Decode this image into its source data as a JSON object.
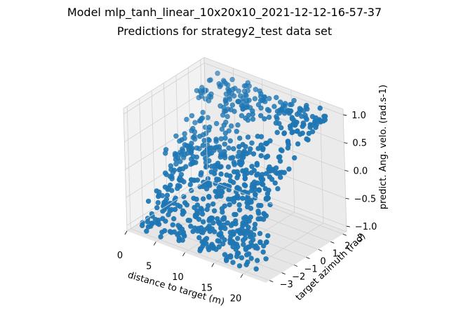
{
  "suptitle": "Model mlp_tanh_linear_10x20x10_2021-12-12-16-57-37",
  "chart_data": {
    "type": "scatter",
    "projection": "3d",
    "title": "Predictions for strategy2_test data set",
    "xlabel": "distance to target (m)",
    "ylabel": "target azimuth (rad)",
    "zlabel": "predict. Ang. velo. (rad.s-1)",
    "x_ticks": [
      0,
      5,
      10,
      15,
      20
    ],
    "y_ticks": [
      -3,
      -2,
      -1,
      0,
      1,
      2,
      3
    ],
    "z_ticks": [
      -1.0,
      -0.5,
      0.0,
      0.5,
      1.0
    ],
    "x_tick_labels": [
      "0",
      "5",
      "10",
      "15",
      "20"
    ],
    "y_tick_labels": [
      "−3",
      "−2",
      "−1",
      "0",
      "1",
      "2",
      "3"
    ],
    "z_tick_labels": [
      "−1.0",
      "−0.5",
      "0.0",
      "0.5",
      "1.0"
    ],
    "xlim": [
      0,
      24
    ],
    "ylim": [
      -3.3,
      3.3
    ],
    "zlim": [
      -1.1,
      1.1
    ],
    "grid": true,
    "marker_color": "#1f77b4",
    "clusters": [
      {
        "x_range": [
          2,
          22
        ],
        "y_range": [
          1.5,
          3.2
        ],
        "z_range": [
          0.65,
          1.0
        ],
        "count": 180
      },
      {
        "x_range": [
          2,
          20
        ],
        "y_range": [
          -1.0,
          1.8
        ],
        "z_range": [
          0.05,
          0.6
        ],
        "count": 120
      },
      {
        "x_range": [
          2,
          20
        ],
        "y_range": [
          -1.5,
          1.0
        ],
        "z_range": [
          -0.25,
          0.25
        ],
        "count": 160
      },
      {
        "x_range": [
          2,
          20
        ],
        "y_range": [
          -2.5,
          -0.5
        ],
        "z_range": [
          -0.6,
          -0.15
        ],
        "count": 130
      },
      {
        "x_range": [
          2,
          22
        ],
        "y_range": [
          -3.2,
          -1.5
        ],
        "z_range": [
          -1.0,
          -0.6
        ],
        "count": 190
      }
    ]
  }
}
